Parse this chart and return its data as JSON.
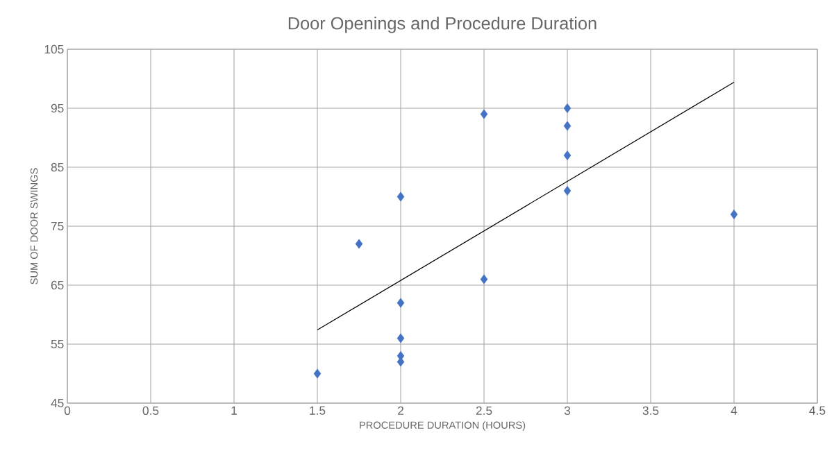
{
  "chart_data": {
    "type": "scatter",
    "title": "Door Openings and Procedure Duration",
    "xlabel": "PROCEDURE DURATION (HOURS)",
    "ylabel": "SUM OF DOOR SWINGS",
    "series": [
      {
        "color": "#4472c4",
        "marker": "diamond",
        "x": [
          1.5,
          1.75,
          2,
          2,
          2,
          2,
          2,
          2.5,
          2.5,
          3,
          3,
          3,
          3,
          4
        ],
        "values": [
          50,
          72,
          80,
          62,
          56,
          53,
          52,
          94,
          66,
          95,
          92,
          87,
          81,
          77
        ]
      },
      {
        "type": "line",
        "color": "#000000",
        "marker": "none",
        "x": [
          1.5,
          4
        ],
        "values": [
          57.4,
          99.4
        ]
      }
    ],
    "xlim": [
      0,
      4.5
    ],
    "xticks": [
      0,
      0.5,
      1,
      1.5,
      2,
      2.5,
      3,
      3.5,
      4,
      4.5
    ],
    "ylim": [
      45,
      105
    ],
    "yticks": [
      45,
      55,
      65,
      75,
      85,
      95,
      105
    ],
    "grid": true
  }
}
